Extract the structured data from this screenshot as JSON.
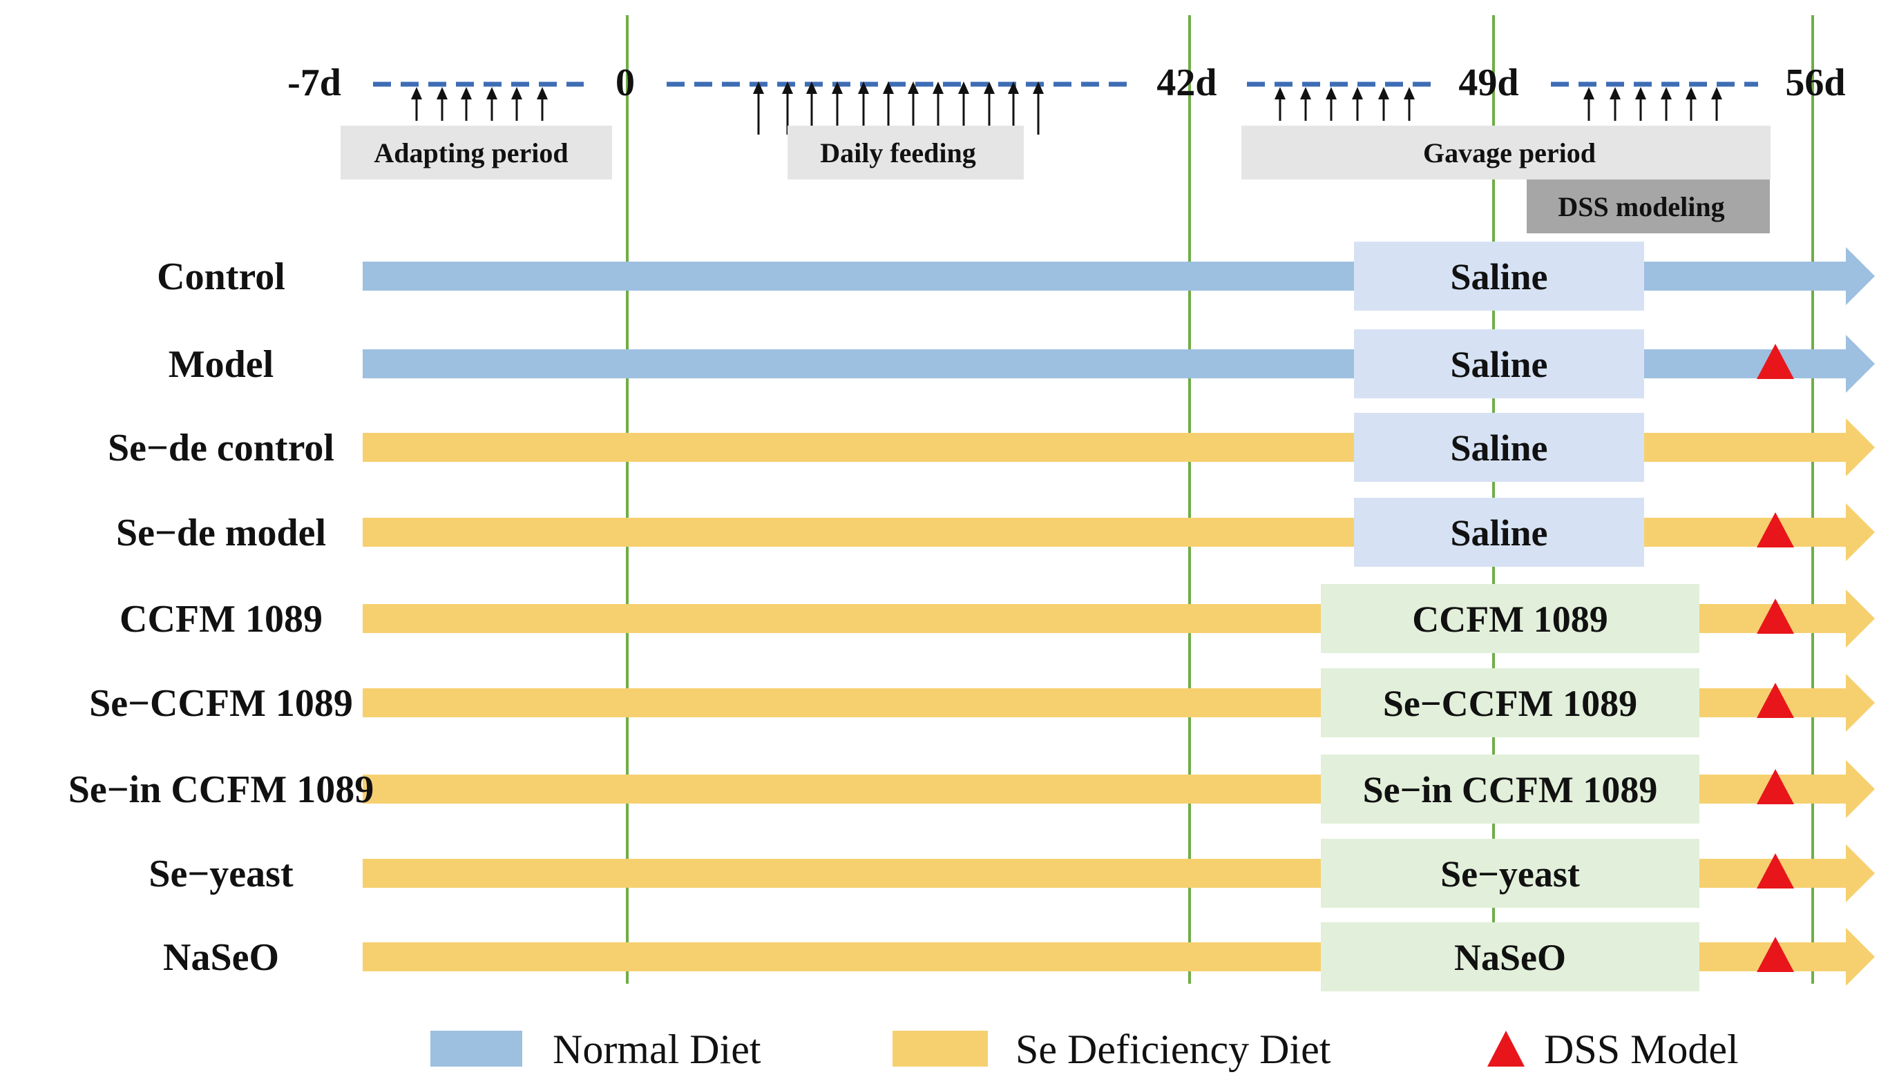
{
  "timeline": {
    "ticks": [
      {
        "label": "-7d",
        "day": -7
      },
      {
        "label": "0",
        "day": 0
      },
      {
        "label": "42d",
        "day": 42
      },
      {
        "label": "49d",
        "day": 49
      },
      {
        "label": "56d",
        "day": 56
      }
    ],
    "periods": [
      {
        "label": "Adapting period"
      },
      {
        "label": "Daily feeding"
      },
      {
        "label": "Gavage period"
      },
      {
        "label": "DSS modeling"
      }
    ]
  },
  "groups": [
    {
      "name": "Control",
      "diet": "normal",
      "treatment": "Saline",
      "dss": false
    },
    {
      "name": "Model",
      "diet": "normal",
      "treatment": "Saline",
      "dss": true
    },
    {
      "name": "Se−de control",
      "diet": "deficient",
      "treatment": "Saline",
      "dss": false
    },
    {
      "name": "Se−de model",
      "diet": "deficient",
      "treatment": "Saline",
      "dss": true
    },
    {
      "name": "CCFM 1089",
      "diet": "deficient",
      "treatment": "CCFM 1089",
      "dss": true
    },
    {
      "name": "Se−CCFM 1089",
      "diet": "deficient",
      "treatment": "Se−CCFM 1089",
      "dss": true
    },
    {
      "name": "Se−in CCFM 1089",
      "diet": "deficient",
      "treatment": "Se−in CCFM 1089",
      "dss": true
    },
    {
      "name": "Se−yeast",
      "diet": "deficient",
      "treatment": "Se−yeast",
      "dss": true
    },
    {
      "name": "NaSeO",
      "diet": "deficient",
      "treatment": "NaSeO",
      "dss": true
    }
  ],
  "legend": [
    {
      "label": "Normal Diet",
      "kind": "normal"
    },
    {
      "label": "Se Deficiency Diet",
      "kind": "deficient"
    },
    {
      "label": "DSS Model",
      "kind": "dss"
    }
  ],
  "colors": {
    "normal": "#9dbfe0",
    "deficient": "#f6d06f",
    "saline_box": "#d6e2f3",
    "treat_box": "#e2efda",
    "period_box": "#e5e5e5",
    "dss_box": "#a6a6a6",
    "vline": "#70ad47",
    "dash": "#3e6db5",
    "dss_marker": "#e8161b"
  }
}
